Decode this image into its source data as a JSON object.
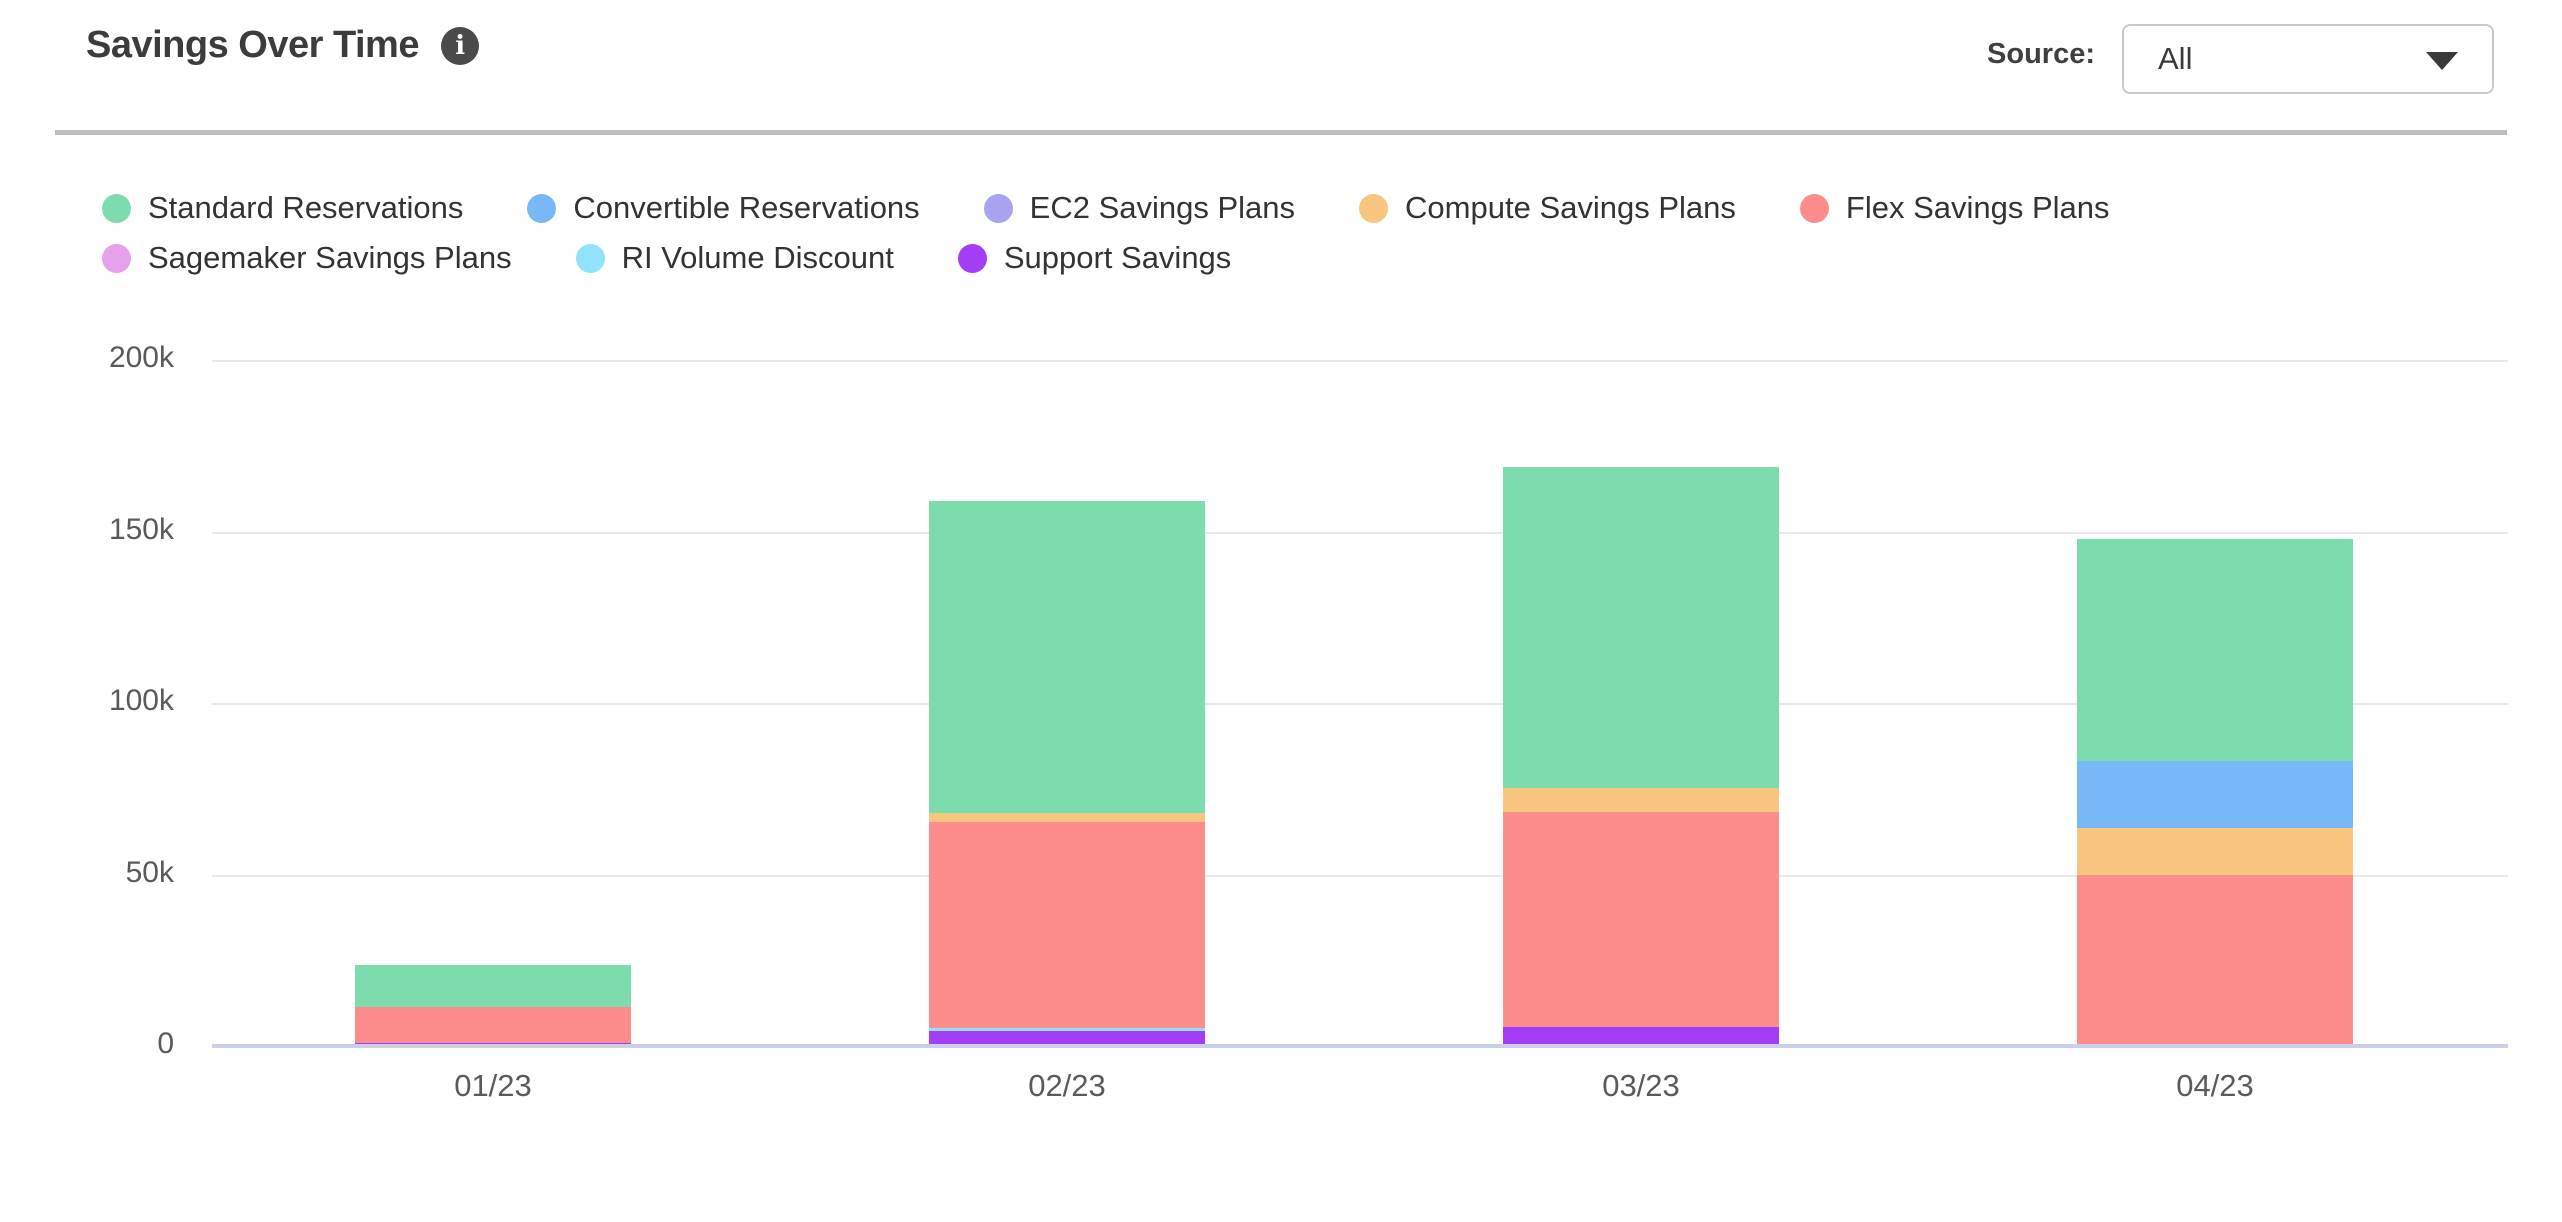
{
  "header": {
    "title": "Savings Over Time",
    "info_icon": "i",
    "source_label": "Source:",
    "source_value": "All"
  },
  "legend": {
    "rows": [
      [
        {
          "label": "Standard Reservations",
          "color": "#7DDCAE"
        },
        {
          "label": "Convertible Reservations",
          "color": "#79B8F7"
        },
        {
          "label": "EC2 Savings Plans",
          "color": "#A9A2EF"
        },
        {
          "label": "Compute Savings Plans",
          "color": "#F7C57E"
        },
        {
          "label": "Flex Savings Plans",
          "color": "#FD8D8D"
        }
      ],
      [
        {
          "label": "Sagemaker Savings Plans",
          "color": "#E6A1EB"
        },
        {
          "label": "RI Volume Discount",
          "color": "#90E3F8"
        },
        {
          "label": "Support Savings",
          "color": "#A43EF6"
        }
      ]
    ]
  },
  "chart_data": {
    "type": "bar",
    "stacked": true,
    "title": "Savings Over Time",
    "categories": [
      "01/23",
      "02/23",
      "03/23",
      "04/23"
    ],
    "y_ticks_top_to_bottom": [
      "200k",
      "150k",
      "100k",
      "50k",
      "0"
    ],
    "ylim": [
      0,
      200000
    ],
    "grid": true,
    "legend_position": "top-left",
    "stack_order_bottom_to_top": [
      "Support Savings",
      "RI Volume Discount",
      "Flex Savings Plans",
      "Compute Savings Plans",
      "Convertible Reservations",
      "EC2 Savings Plans",
      "Sagemaker Savings Plans",
      "Standard Reservations"
    ],
    "series": [
      {
        "name": "Support Savings",
        "color": "#A43EF6",
        "values": [
          1000,
          4500,
          5400,
          0
        ]
      },
      {
        "name": "RI Volume Discount",
        "color": "#90E3F8",
        "values": [
          0,
          800,
          0,
          0
        ]
      },
      {
        "name": "Flex Savings Plans",
        "color": "#FD8D8D",
        "values": [
          10300,
          60100,
          62800,
          49900
        ]
      },
      {
        "name": "Compute Savings Plans",
        "color": "#F7C57E",
        "values": [
          0,
          2600,
          7000,
          13700
        ]
      },
      {
        "name": "Convertible Reservations",
        "color": "#79B8F7",
        "values": [
          0,
          0,
          0,
          19500
        ]
      },
      {
        "name": "EC2 Savings Plans",
        "color": "#A9A2EF",
        "values": [
          0,
          0,
          0,
          0
        ]
      },
      {
        "name": "Sagemaker Savings Plans",
        "color": "#E6A1EB",
        "values": [
          0,
          0,
          0,
          0
        ]
      },
      {
        "name": "Standard Reservations",
        "color": "#7DDCAE",
        "values": [
          12200,
          91000,
          93600,
          64700
        ]
      }
    ]
  },
  "colors": {
    "grid": "#e9e9e9",
    "axis_line": "#c9d0e8",
    "tick_label": "#5a5a5a",
    "divider": "#bdbdbd",
    "title_text": "#3c3c3c",
    "legend_text": "#333333",
    "info_icon_bg": "#4a4a4a"
  }
}
